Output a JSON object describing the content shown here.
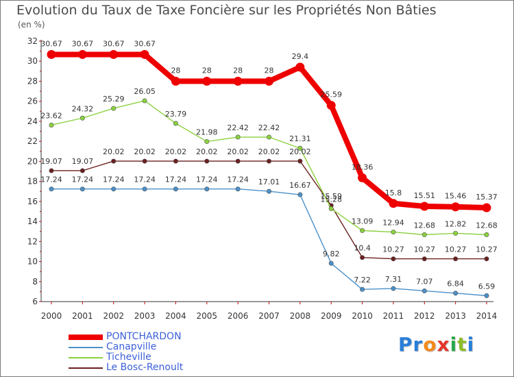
{
  "title": "Evolution du Taux de Taxe Foncière sur les Propriétés Non Bâties",
  "unit": "(en %)",
  "logo": {
    "text": "Proxiti",
    "letters": [
      "P",
      "r",
      "o",
      "x",
      "i",
      "t",
      "i"
    ],
    "colors": [
      "#2a7ed8",
      "#2a7ed8",
      "#f28a1c",
      "#e4352b",
      "#2aa84a",
      "#8dbd2a",
      "#2a7ed8"
    ]
  },
  "chart_data": {
    "type": "line",
    "title": "Evolution du Taux de Taxe Foncière sur les Propriétés Non Bâties",
    "ylabel": "(en %)",
    "xlabel": "",
    "x": [
      "2000",
      "2001",
      "2002",
      "2003",
      "2004",
      "2005",
      "2006",
      "2007",
      "2008",
      "2009",
      "2010",
      "2011",
      "2012",
      "2013",
      "2014"
    ],
    "ylim": [
      6,
      32
    ],
    "yticks": [
      6,
      8,
      10,
      12,
      14,
      16,
      18,
      20,
      22,
      24,
      26,
      28,
      30,
      32
    ],
    "grid": false,
    "legend_position": "bottom-left",
    "series": [
      {
        "name": "PONTCHARDON",
        "color": "#ee0000",
        "values": [
          30.67,
          30.67,
          30.67,
          30.67,
          28,
          28,
          28,
          28,
          29.4,
          25.59,
          18.36,
          15.8,
          15.51,
          15.46,
          15.37
        ],
        "labels": [
          "30.67",
          "30.67",
          "30.67",
          "30.67",
          "28",
          "28",
          "28",
          "28",
          "29.4",
          "25.59",
          "18.36",
          "15.8",
          "15.51",
          "15.46",
          "15.37"
        ]
      },
      {
        "name": "Canapville",
        "color": "#4a90c9",
        "values": [
          17.24,
          17.24,
          17.24,
          17.24,
          17.24,
          17.24,
          17.24,
          17.01,
          16.67,
          9.82,
          7.22,
          7.31,
          7.07,
          6.84,
          6.59
        ],
        "labels": [
          "17.24",
          "17.24",
          "17.24",
          "17.24",
          "17.24",
          "17.24",
          "17.24",
          "17.01",
          "16.67",
          "9.82",
          "7.22",
          "7.31",
          "7.07",
          "6.84",
          "6.59"
        ]
      },
      {
        "name": "Ticheville",
        "color": "#8bd13f",
        "values": [
          23.62,
          24.32,
          25.29,
          26.05,
          23.79,
          21.98,
          22.42,
          22.42,
          21.31,
          15.28,
          13.09,
          12.94,
          12.68,
          12.82,
          12.68
        ],
        "labels": [
          "23.62",
          "24.32",
          "25.29",
          "26.05",
          "23.79",
          "21.98",
          "22.42",
          "22.42",
          "21.31",
          "15.28",
          "13.09",
          "12.94",
          "12.68",
          "12.82",
          "12.68"
        ]
      },
      {
        "name": "Le Bosc-Renoult",
        "color": "#6b1f1f",
        "values": [
          19.07,
          19.07,
          20.02,
          20.02,
          20.02,
          20.02,
          20.02,
          20.02,
          20.02,
          15.59,
          10.4,
          10.27,
          10.27,
          10.27,
          10.27
        ],
        "labels": [
          "19.07",
          "19.07",
          "20.02",
          "20.02",
          "20.02",
          "20.02",
          "20.02",
          "20.02",
          "20.02",
          "15.59",
          "10.4",
          "10.27",
          "10.27",
          "10.27",
          "10.27"
        ]
      }
    ]
  }
}
